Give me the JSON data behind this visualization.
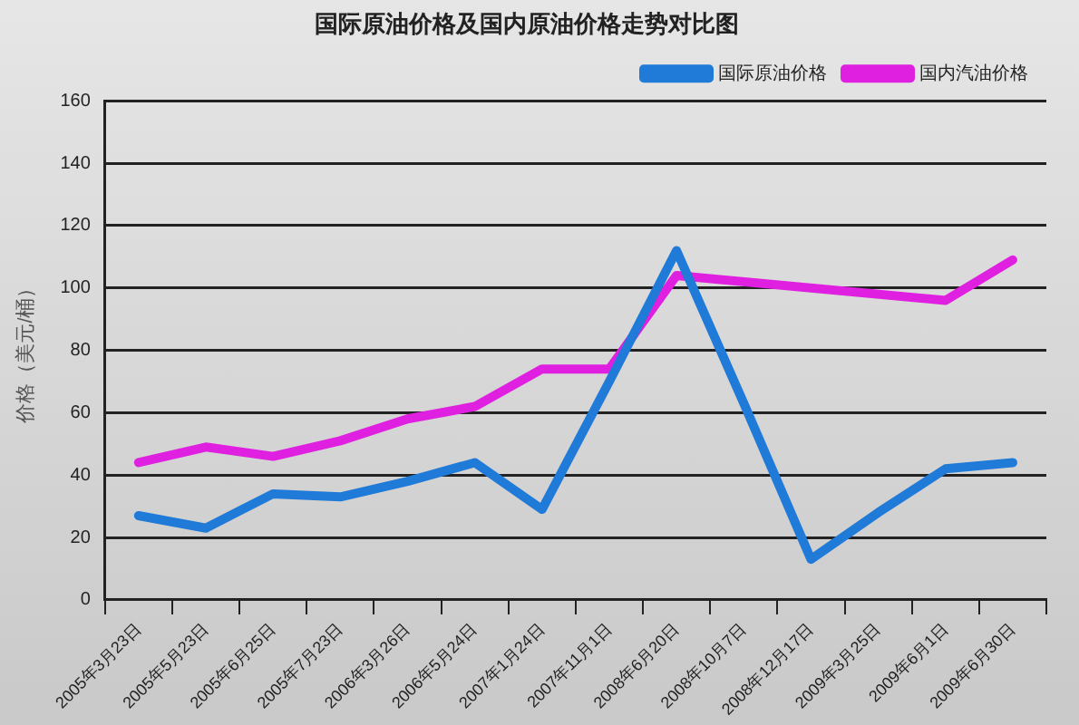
{
  "chart_data": {
    "type": "line",
    "title": "国际原油价格及国内原油价格走势对比图",
    "ylabel": "价格（美元/桶）",
    "categories": [
      "2005年3月23日",
      "2005年5月23日",
      "2005年6月25日",
      "2005年7月23日",
      "2006年3月26日",
      "2006年5月24日",
      "2007年1月24日",
      "2007年11月1日",
      "2008年6月20日",
      "2008年10月7日",
      "2008年12月17日",
      "2009年3月25日",
      "2009年6月1日",
      "2009年6月30日"
    ],
    "series": [
      {
        "name": "国际原油价格",
        "color": "#1f7ad8",
        "values": [
          27,
          23,
          34,
          33,
          38,
          44,
          29,
          70,
          112,
          63,
          13,
          28,
          42,
          44
        ]
      },
      {
        "name": "国内汽油价格",
        "color": "#e020e0",
        "values": [
          44,
          49,
          46,
          51,
          58,
          62,
          74,
          74,
          104,
          null,
          null,
          null,
          96,
          109
        ]
      }
    ],
    "ylim": [
      0,
      160
    ],
    "yticks": [
      0,
      20,
      40,
      60,
      80,
      100,
      120,
      140,
      160
    ],
    "grid": "y",
    "legend": "top right",
    "marker": "none",
    "line_style": "solid"
  }
}
